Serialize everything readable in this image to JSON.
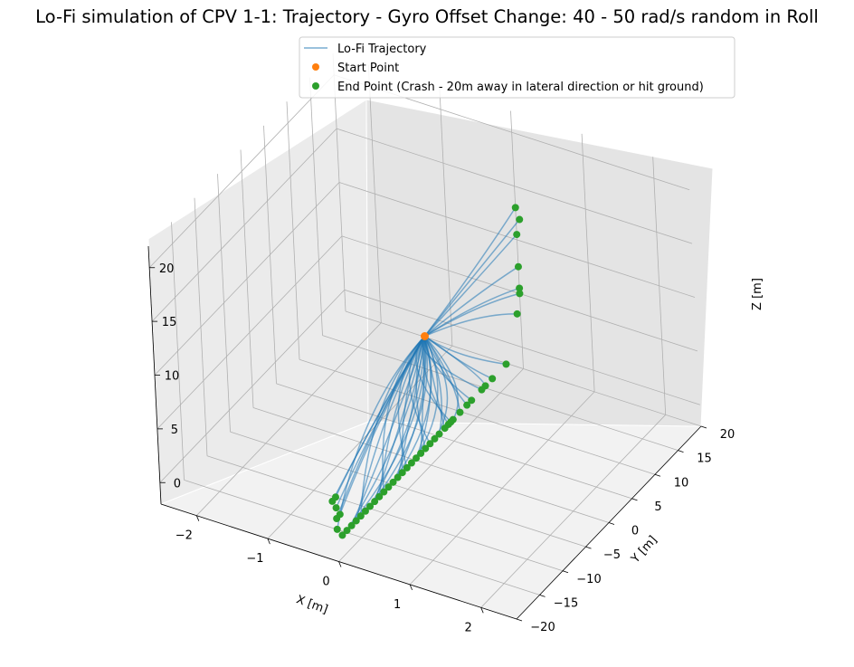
{
  "chart_data": {
    "type": "line",
    "projection": "3d",
    "title": "Lo-Fi simulation of CPV 1-1: Trajectory - Gyro Offset Change: 40 - 50 rad/s random in Roll",
    "xlabel": "X [m]",
    "ylabel": "Y [m]",
    "zlabel": "Z [m]",
    "xlim": [
      -2.5,
      2.5
    ],
    "ylim": [
      -20,
      20
    ],
    "zlim": [
      -2,
      22
    ],
    "xticks": [
      -2,
      -1,
      0,
      1,
      2
    ],
    "xtick_labels": [
      "−2",
      "−1",
      "0",
      "1",
      "2"
    ],
    "yticks": [
      -20,
      -15,
      -10,
      -5,
      0,
      5,
      10,
      15,
      20
    ],
    "ytick_labels": [
      "−20",
      "−15",
      "−10",
      "−5",
      "0",
      "5",
      "10",
      "15",
      "20"
    ],
    "zticks": [
      0,
      5,
      10,
      15,
      20
    ],
    "ztick_labels": [
      "0",
      "5",
      "10",
      "15",
      "20"
    ],
    "grid": true,
    "legend_position": "top-center",
    "legend": [
      {
        "label": "Lo-Fi Trajectory",
        "kind": "line",
        "color": "#1f77b4"
      },
      {
        "label": "Start Point",
        "kind": "marker",
        "color": "#ff7f0e"
      },
      {
        "label": "End Point (Crash - 20m away in lateral direction or hit ground)",
        "kind": "marker",
        "color": "#2ca02c"
      }
    ],
    "start_point": {
      "x": 0.0,
      "y": 0.0,
      "z": 10.0
    },
    "end_points": [
      {
        "x": 0.0,
        "y": 20.0,
        "z": 13.0
      },
      {
        "x": 0.05,
        "y": 20.0,
        "z": 12.0
      },
      {
        "x": 0.0,
        "y": 20.0,
        "z": 10.5
      },
      {
        "x": 0.0,
        "y": 20.0,
        "z": 7.5
      },
      {
        "x": 0.0,
        "y": 20.0,
        "z": 5.5
      },
      {
        "x": 0.0,
        "y": 20.0,
        "z": 5.0
      },
      {
        "x": -0.05,
        "y": 20.0,
        "z": 3.0
      },
      {
        "x": 0.0,
        "y": 16.5,
        "z": 0.0
      },
      {
        "x": 0.0,
        "y": 13.5,
        "z": 0.0
      },
      {
        "x": 0.0,
        "y": 12.0,
        "z": 0.0
      },
      {
        "x": 0.0,
        "y": 11.2,
        "z": 0.0
      },
      {
        "x": 0.0,
        "y": 9.0,
        "z": 0.0
      },
      {
        "x": 0.0,
        "y": 8.0,
        "z": 0.0
      },
      {
        "x": 0.0,
        "y": 6.5,
        "z": 0.0
      },
      {
        "x": 0.0,
        "y": 5.0,
        "z": 0.0
      },
      {
        "x": 0.0,
        "y": 4.5,
        "z": 0.0
      },
      {
        "x": 0.0,
        "y": 4.0,
        "z": 0.0
      },
      {
        "x": 0.0,
        "y": 3.2,
        "z": 0.0
      },
      {
        "x": 0.0,
        "y": 2.0,
        "z": 0.0
      },
      {
        "x": 0.0,
        "y": 1.0,
        "z": 0.0
      },
      {
        "x": 0.0,
        "y": 0.0,
        "z": 0.0
      },
      {
        "x": 0.0,
        "y": -1.0,
        "z": 0.0
      },
      {
        "x": 0.0,
        "y": -2.0,
        "z": 0.0
      },
      {
        "x": 0.0,
        "y": -3.0,
        "z": 0.0
      },
      {
        "x": 0.0,
        "y": -4.0,
        "z": 0.0
      },
      {
        "x": 0.0,
        "y": -5.0,
        "z": 0.0
      },
      {
        "x": 0.0,
        "y": -6.0,
        "z": 0.0
      },
      {
        "x": 0.0,
        "y": -7.0,
        "z": 0.0
      },
      {
        "x": 0.0,
        "y": -8.0,
        "z": 0.0
      },
      {
        "x": 0.0,
        "y": -9.0,
        "z": 0.0
      },
      {
        "x": 0.0,
        "y": -10.0,
        "z": 0.0
      },
      {
        "x": 0.0,
        "y": -11.0,
        "z": 0.0
      },
      {
        "x": 0.0,
        "y": -12.0,
        "z": 0.0
      },
      {
        "x": 0.0,
        "y": -13.0,
        "z": 0.0
      },
      {
        "x": 0.0,
        "y": -14.0,
        "z": 0.0
      },
      {
        "x": 0.0,
        "y": -15.0,
        "z": 0.0
      },
      {
        "x": 0.0,
        "y": -16.0,
        "z": 0.0
      },
      {
        "x": 0.0,
        "y": -17.0,
        "z": 0.0
      },
      {
        "x": 0.0,
        "y": -18.0,
        "z": 0.0
      },
      {
        "x": 0.0,
        "y": -19.0,
        "z": 0.0
      },
      {
        "x": 0.0,
        "y": -20.0,
        "z": 1.0
      },
      {
        "x": 0.0,
        "y": -20.0,
        "z": 2.0
      },
      {
        "x": 0.0,
        "y": -20.0,
        "z": 3.0
      },
      {
        "x": 0.0,
        "y": -20.0,
        "z": 4.0
      },
      {
        "x": -0.05,
        "y": -20.0,
        "z": 3.5
      },
      {
        "x": 0.05,
        "y": -20.0,
        "z": 2.5
      }
    ]
  }
}
